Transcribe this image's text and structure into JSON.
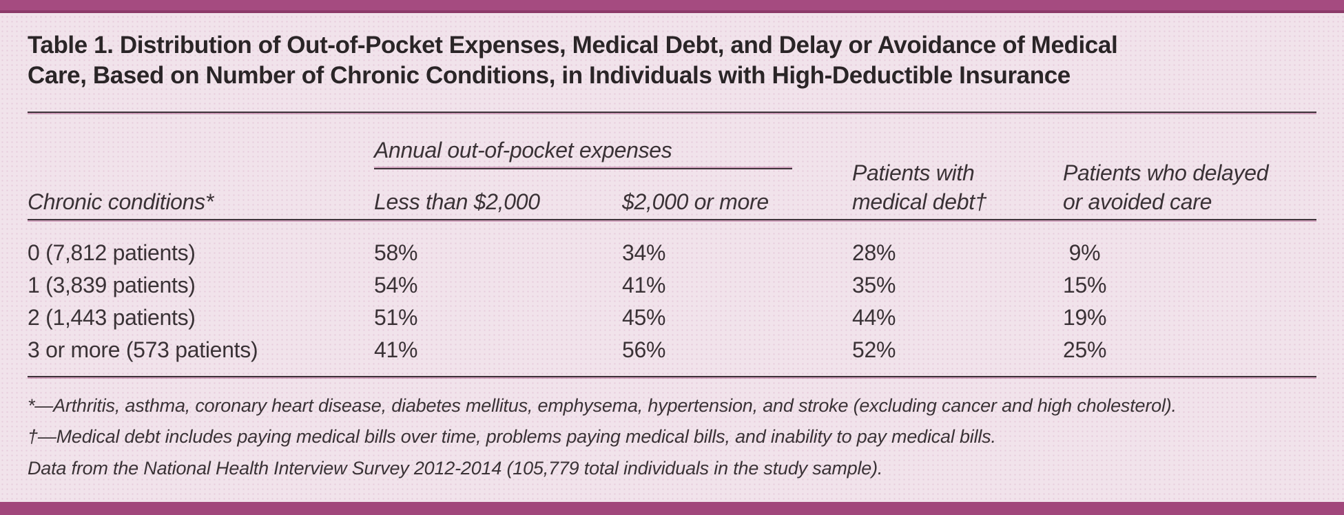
{
  "colors": {
    "accent_bar": "#a1477b",
    "accent_bar_edge": "#8b3a68",
    "page_background": "#f1e3eb",
    "rule": "#3d3339",
    "title_text": "#2a2527",
    "body_text": "#3a3236"
  },
  "title": {
    "line1": "Table 1. Distribution of Out-of-Pocket Expenses, Medical Debt, and Delay or Avoidance of Medical",
    "line2": "Care, Based on Number of Chronic Conditions, in Individuals with High-Deductible Insurance"
  },
  "table": {
    "spanner_header": "Annual out-of-pocket expenses",
    "column_headers": {
      "chronic_conditions": "Chronic conditions*",
      "oop_less_2000": "Less than $2,000",
      "oop_2000_or_more": "$2,000 or more",
      "medical_debt_line1": "Patients with",
      "medical_debt_line2": "medical debt†",
      "delayed_line1": "Patients who delayed",
      "delayed_line2": "or avoided care"
    },
    "rows": [
      {
        "label": "0 (7,812 patients)",
        "oop_less_2000": "58%",
        "oop_2000_or_more": "34%",
        "medical_debt": "28%",
        "delayed_avoided": " 9%"
      },
      {
        "label": "1 (3,839 patients)",
        "oop_less_2000": "54%",
        "oop_2000_or_more": "41%",
        "medical_debt": "35%",
        "delayed_avoided": "15%"
      },
      {
        "label": "2 (1,443 patients)",
        "oop_less_2000": "51%",
        "oop_2000_or_more": "45%",
        "medical_debt": "44%",
        "delayed_avoided": "19%"
      },
      {
        "label": "3 or more (573 patients)",
        "oop_less_2000": "41%",
        "oop_2000_or_more": "56%",
        "medical_debt": "52%",
        "delayed_avoided": "25%"
      }
    ]
  },
  "footnotes": [
    "*—Arthritis, asthma, coronary heart disease, diabetes mellitus, emphysema, hypertension, and stroke (excluding cancer and high cholesterol).",
    "†—Medical debt includes paying medical bills over time, problems paying medical bills, and inability to pay medical bills.",
    "Data from the National Health Interview Survey 2012-2014 (105,779 total individuals in the study sample)."
  ]
}
